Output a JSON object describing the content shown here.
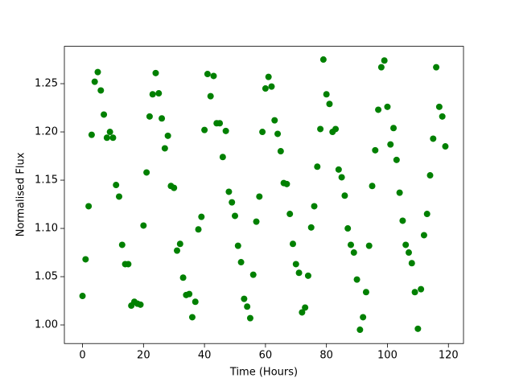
{
  "chart_data": {
    "type": "scatter",
    "xlabel": "Time (Hours)",
    "ylabel": "Normalised Flux",
    "color": "#008000",
    "grid": false,
    "x": [
      0,
      1,
      2,
      3,
      4,
      5,
      6,
      7,
      8,
      9,
      10,
      11,
      12,
      13,
      14,
      15,
      16,
      17,
      18,
      19,
      20,
      21,
      22,
      23,
      24,
      25,
      26,
      27,
      28,
      29,
      30,
      31,
      32,
      33,
      34,
      35,
      36,
      37,
      38,
      39,
      40,
      41,
      42,
      43,
      44,
      45,
      46,
      47,
      48,
      49,
      50,
      51,
      52,
      53,
      54,
      55,
      56,
      57,
      58,
      59,
      60,
      61,
      62,
      63,
      64,
      65,
      66,
      67,
      68,
      69,
      70,
      71,
      72,
      73,
      74,
      75,
      76,
      77,
      78,
      79,
      80,
      81,
      82,
      83,
      84,
      85,
      86,
      87,
      88,
      89,
      90,
      91,
      92,
      93,
      94,
      95,
      96,
      97,
      98,
      99,
      100,
      101,
      102,
      103,
      104,
      105,
      106,
      107,
      108,
      109,
      110,
      111,
      112,
      113,
      114,
      115,
      116,
      117,
      118,
      119
    ],
    "values": [
      1.03,
      1.068,
      1.123,
      1.197,
      1.252,
      1.262,
      1.243,
      1.218,
      1.194,
      1.2,
      1.194,
      1.145,
      1.133,
      1.083,
      1.063,
      1.063,
      1.02,
      1.024,
      1.022,
      1.021,
      1.103,
      1.158,
      1.216,
      1.239,
      1.261,
      1.24,
      1.214,
      1.183,
      1.196,
      1.144,
      1.142,
      1.077,
      1.084,
      1.049,
      1.031,
      1.032,
      1.008,
      1.024,
      1.099,
      1.112,
      1.202,
      1.26,
      1.237,
      1.258,
      1.209,
      1.209,
      1.174,
      1.201,
      1.138,
      1.127,
      1.113,
      1.082,
      1.065,
      1.027,
      1.019,
      1.007,
      1.052,
      1.107,
      1.133,
      1.2,
      1.245,
      1.257,
      1.247,
      1.212,
      1.198,
      1.18,
      1.147,
      1.146,
      1.115,
      1.084,
      1.063,
      1.054,
      1.013,
      1.018,
      1.051,
      1.101,
      1.123,
      1.164,
      1.203,
      1.275,
      1.239,
      1.229,
      1.2,
      1.203,
      1.161,
      1.153,
      1.134,
      1.1,
      1.083,
      1.075,
      1.047,
      0.995,
      1.008,
      1.034,
      1.082,
      1.144,
      1.181,
      1.223,
      1.267,
      1.274,
      1.226,
      1.187,
      1.204,
      1.171,
      1.137,
      1.108,
      1.083,
      1.075,
      1.064,
      1.034,
      0.996,
      1.037,
      1.093,
      1.115,
      1.155,
      1.193,
      1.267,
      1.226,
      1.216,
      1.185
    ],
    "xlim": [
      -5.95,
      124.95
    ],
    "xticks": [
      0,
      20,
      40,
      60,
      80,
      100,
      120
    ],
    "ylim": [
      0.9807,
      1.2887
    ],
    "yticks": [
      {
        "value": 1.0,
        "label": "1.00"
      },
      {
        "value": 1.05,
        "label": "1.05"
      },
      {
        "value": 1.1,
        "label": "1.10"
      },
      {
        "value": 1.15,
        "label": "1.15"
      },
      {
        "value": 1.2,
        "label": "1.20"
      },
      {
        "value": 1.25,
        "label": "1.25"
      }
    ]
  }
}
